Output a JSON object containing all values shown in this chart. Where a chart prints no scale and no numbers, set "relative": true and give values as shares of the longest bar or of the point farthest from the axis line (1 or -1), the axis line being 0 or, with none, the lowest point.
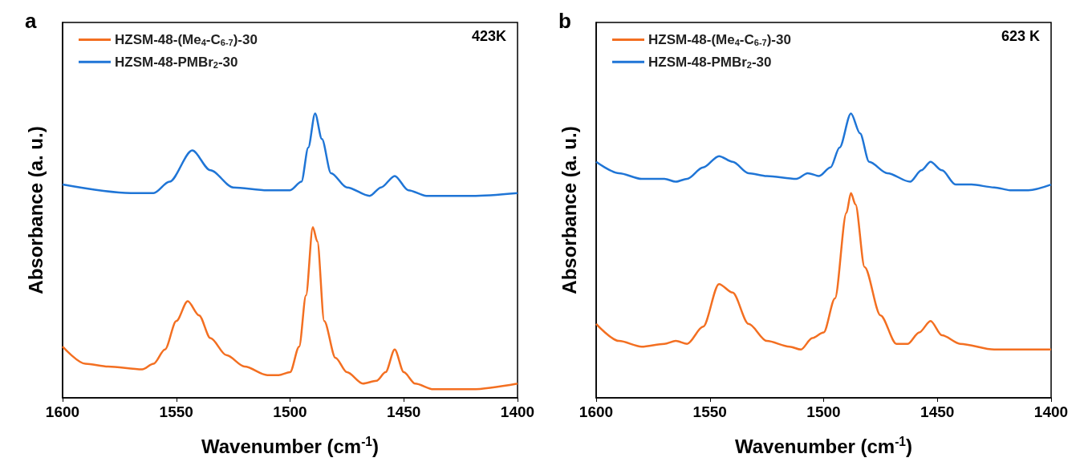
{
  "chart_data": [
    {
      "type": "line",
      "title": "a",
      "annotations": [
        "423K"
      ],
      "xlabel": "Wavenumber (cm$^{-1}$)",
      "ylabel": "Absorbance (a. u.)",
      "relative": true,
      "xlim": [
        1600,
        1400
      ],
      "xticks": [
        1600,
        1550,
        1500,
        1450,
        1400
      ],
      "grid": false,
      "legend": "top left",
      "marker": "none",
      "line_style": "solid",
      "series": [
        {
          "name": "HZSM-48-(Me$_{4}$-C$_{6-7}$)-30",
          "color": "#f36f21",
          "x": [
            1600,
            1590,
            1580,
            1565,
            1560,
            1555,
            1550,
            1545,
            1540,
            1535,
            1528,
            1520,
            1510,
            1505,
            1500,
            1496,
            1493,
            1490,
            1488,
            1485,
            1480,
            1475,
            1468,
            1462,
            1458,
            1454,
            1450,
            1445,
            1437,
            1420,
            1400
          ],
          "values": [
            0.18,
            0.12,
            0.11,
            0.1,
            0.12,
            0.17,
            0.27,
            0.34,
            0.29,
            0.21,
            0.15,
            0.11,
            0.08,
            0.08,
            0.09,
            0.18,
            0.36,
            0.6,
            0.55,
            0.27,
            0.14,
            0.09,
            0.05,
            0.06,
            0.09,
            0.17,
            0.09,
            0.05,
            0.03,
            0.03,
            0.05
          ]
        },
        {
          "name": "HZSM-48-PMBr$_{2}$-30",
          "color": "#1f75d6",
          "x": [
            1600,
            1570,
            1560,
            1553,
            1543,
            1535,
            1525,
            1510,
            1500,
            1495,
            1492,
            1489,
            1486,
            1482,
            1475,
            1465,
            1460,
            1454,
            1448,
            1440,
            1420,
            1400
          ],
          "values": [
            0.75,
            0.72,
            0.72,
            0.76,
            0.87,
            0.8,
            0.74,
            0.73,
            0.73,
            0.76,
            0.88,
            1.0,
            0.91,
            0.79,
            0.74,
            0.71,
            0.74,
            0.78,
            0.73,
            0.71,
            0.71,
            0.72
          ]
        }
      ]
    },
    {
      "type": "line",
      "title": "b",
      "annotations": [
        "623 K"
      ],
      "xlabel": "Wavenumber (cm$^{-1}$)",
      "ylabel": "Absorbance (a. u.)",
      "relative": true,
      "xlim": [
        1600,
        1400
      ],
      "xticks": [
        1600,
        1550,
        1500,
        1450,
        1400
      ],
      "grid": false,
      "legend": "top left",
      "marker": "none",
      "line_style": "solid",
      "series": [
        {
          "name": "HZSM-48-(Me$_{4}$-C$_{6-7}$)-30",
          "color": "#f36f21",
          "x": [
            1600,
            1590,
            1580,
            1570,
            1565,
            1560,
            1553,
            1546,
            1540,
            1533,
            1525,
            1515,
            1510,
            1505,
            1500,
            1495,
            1490,
            1488,
            1486,
            1482,
            1475,
            1468,
            1463,
            1458,
            1453,
            1448,
            1440,
            1425,
            1400
          ],
          "values": [
            0.26,
            0.2,
            0.18,
            0.19,
            0.2,
            0.19,
            0.25,
            0.4,
            0.37,
            0.26,
            0.2,
            0.18,
            0.17,
            0.21,
            0.23,
            0.35,
            0.65,
            0.72,
            0.68,
            0.46,
            0.29,
            0.19,
            0.19,
            0.23,
            0.27,
            0.22,
            0.19,
            0.17,
            0.17
          ]
        },
        {
          "name": "HZSM-48-PMBr$_{2}$-30",
          "color": "#1f75d6",
          "x": [
            1600,
            1590,
            1580,
            1570,
            1565,
            1560,
            1553,
            1546,
            1540,
            1533,
            1525,
            1512,
            1507,
            1502,
            1497,
            1493,
            1488,
            1484,
            1480,
            1472,
            1462,
            1457,
            1453,
            1448,
            1442,
            1435,
            1425,
            1418,
            1410,
            1400
          ],
          "values": [
            0.83,
            0.79,
            0.77,
            0.77,
            0.76,
            0.77,
            0.81,
            0.85,
            0.83,
            0.79,
            0.78,
            0.77,
            0.79,
            0.78,
            0.81,
            0.88,
            1.0,
            0.93,
            0.83,
            0.79,
            0.76,
            0.8,
            0.83,
            0.8,
            0.75,
            0.75,
            0.74,
            0.73,
            0.73,
            0.75
          ]
        }
      ]
    }
  ]
}
